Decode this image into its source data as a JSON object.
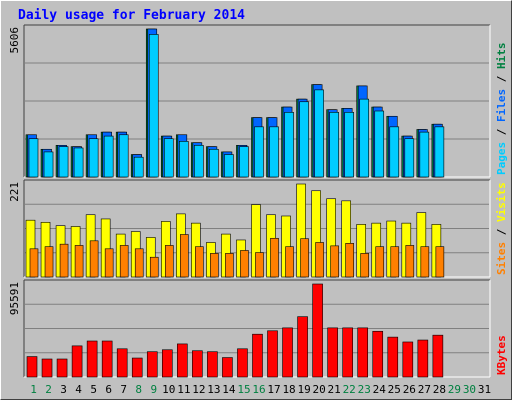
{
  "title": "Daily usage for February 2014",
  "colors": {
    "background": "#c0c0c0",
    "plot_bg": "#c0c0c0",
    "pages": "#00ccff",
    "files": "#0066ff",
    "hits": "#008040",
    "visits": "#ffff00",
    "sites": "#ff8000",
    "kbytes": "#ff0000",
    "weekend_label": "#008040",
    "weekday_label": "#000000"
  },
  "chart_data": [
    {
      "type": "bar",
      "title": "Daily usage for February 2014",
      "ymax_label": "5606",
      "right_label_parts": [
        {
          "text": "Pages",
          "color": "#00ccff"
        },
        {
          "text": " / ",
          "color": "#000000"
        },
        {
          "text": "Files",
          "color": "#0066ff"
        },
        {
          "text": " / ",
          "color": "#000000"
        },
        {
          "text": "Hits",
          "color": "#008040"
        }
      ],
      "ylim": [
        0,
        5606
      ],
      "categories": [
        "1",
        "2",
        "3",
        "4",
        "5",
        "6",
        "7",
        "8",
        "9",
        "10",
        "11",
        "12",
        "13",
        "14",
        "15",
        "16",
        "17",
        "18",
        "19",
        "20",
        "21",
        "22",
        "23",
        "24",
        "25",
        "26",
        "27",
        "28",
        "29",
        "30",
        "31"
      ],
      "series": [
        {
          "name": "Hits",
          "values": [
            1600,
            1050,
            1200,
            1150,
            1600,
            1700,
            1700,
            850,
            5606,
            1550,
            1600,
            1300,
            1150,
            950,
            1200,
            2250,
            2250,
            2650,
            2950,
            3500,
            2550,
            2600,
            3450,
            2650,
            2300,
            1550,
            1800,
            2000,
            null,
            null,
            null
          ]
        },
        {
          "name": "Files",
          "values": [
            1600,
            1050,
            1200,
            1150,
            1600,
            1700,
            1700,
            850,
            5606,
            1550,
            1600,
            1300,
            1150,
            950,
            1200,
            2250,
            2250,
            2650,
            2950,
            3500,
            2550,
            2600,
            3450,
            2650,
            2300,
            1550,
            1800,
            2000,
            null,
            null,
            null
          ]
        },
        {
          "name": "Pages",
          "values": [
            1450,
            950,
            1150,
            1100,
            1450,
            1550,
            1600,
            750,
            5400,
            1450,
            1350,
            1200,
            1050,
            850,
            1150,
            1900,
            1900,
            2450,
            2850,
            3300,
            2450,
            2450,
            2950,
            2500,
            1900,
            1450,
            1700,
            1900,
            null,
            null,
            null
          ]
        }
      ]
    },
    {
      "type": "bar",
      "ymax_label": "221",
      "right_label_parts": [
        {
          "text": "Sites",
          "color": "#ff8000"
        },
        {
          "text": " / ",
          "color": "#000000"
        },
        {
          "text": "Visits",
          "color": "#ffff00"
        }
      ],
      "ylim": [
        0,
        221
      ],
      "series": [
        {
          "name": "Visits",
          "values": [
            135,
            130,
            122,
            120,
            148,
            138,
            102,
            108,
            94,
            132,
            150,
            128,
            82,
            102,
            88,
            172,
            148,
            145,
            221,
            205,
            186,
            181,
            125,
            128,
            133,
            128,
            153,
            125,
            null,
            null,
            null
          ]
        },
        {
          "name": "Sites",
          "values": [
            67,
            72,
            78,
            75,
            86,
            67,
            75,
            67,
            47,
            75,
            101,
            72,
            56,
            56,
            63,
            58,
            92,
            72,
            91,
            82,
            74,
            80,
            56,
            72,
            72,
            75,
            72,
            72,
            null,
            null,
            null
          ]
        }
      ]
    },
    {
      "type": "bar",
      "ymax_label": "95591",
      "right_label_parts": [
        {
          "text": "KBytes",
          "color": "#ff0000"
        }
      ],
      "ylim": [
        0,
        95591
      ],
      "series": [
        {
          "name": "KBytes",
          "values": [
            21000,
            18500,
            18500,
            32000,
            37000,
            37000,
            29000,
            19500,
            26000,
            28000,
            34000,
            27000,
            26000,
            20000,
            29000,
            44000,
            47500,
            50500,
            62000,
            95591,
            50500,
            50500,
            50500,
            47000,
            41000,
            36000,
            38000,
            43000,
            null,
            null,
            null
          ]
        }
      ]
    }
  ],
  "x_labels": [
    {
      "text": "1",
      "weekend": true
    },
    {
      "text": "2",
      "weekend": true
    },
    {
      "text": "3",
      "weekend": false
    },
    {
      "text": "4",
      "weekend": false
    },
    {
      "text": "5",
      "weekend": false
    },
    {
      "text": "6",
      "weekend": false
    },
    {
      "text": "7",
      "weekend": false
    },
    {
      "text": "8",
      "weekend": true
    },
    {
      "text": "9",
      "weekend": true
    },
    {
      "text": "10",
      "weekend": false
    },
    {
      "text": "11",
      "weekend": false
    },
    {
      "text": "12",
      "weekend": false
    },
    {
      "text": "13",
      "weekend": false
    },
    {
      "text": "14",
      "weekend": false
    },
    {
      "text": "15",
      "weekend": true
    },
    {
      "text": "16",
      "weekend": true
    },
    {
      "text": "17",
      "weekend": false
    },
    {
      "text": "18",
      "weekend": false
    },
    {
      "text": "19",
      "weekend": false
    },
    {
      "text": "20",
      "weekend": false
    },
    {
      "text": "21",
      "weekend": false
    },
    {
      "text": "22",
      "weekend": true
    },
    {
      "text": "23",
      "weekend": true
    },
    {
      "text": "24",
      "weekend": false
    },
    {
      "text": "25",
      "weekend": false
    },
    {
      "text": "26",
      "weekend": false
    },
    {
      "text": "27",
      "weekend": false
    },
    {
      "text": "28",
      "weekend": false
    },
    {
      "text": "29",
      "weekend": true
    },
    {
      "text": "30",
      "weekend": true
    },
    {
      "text": "31",
      "weekend": false
    }
  ]
}
